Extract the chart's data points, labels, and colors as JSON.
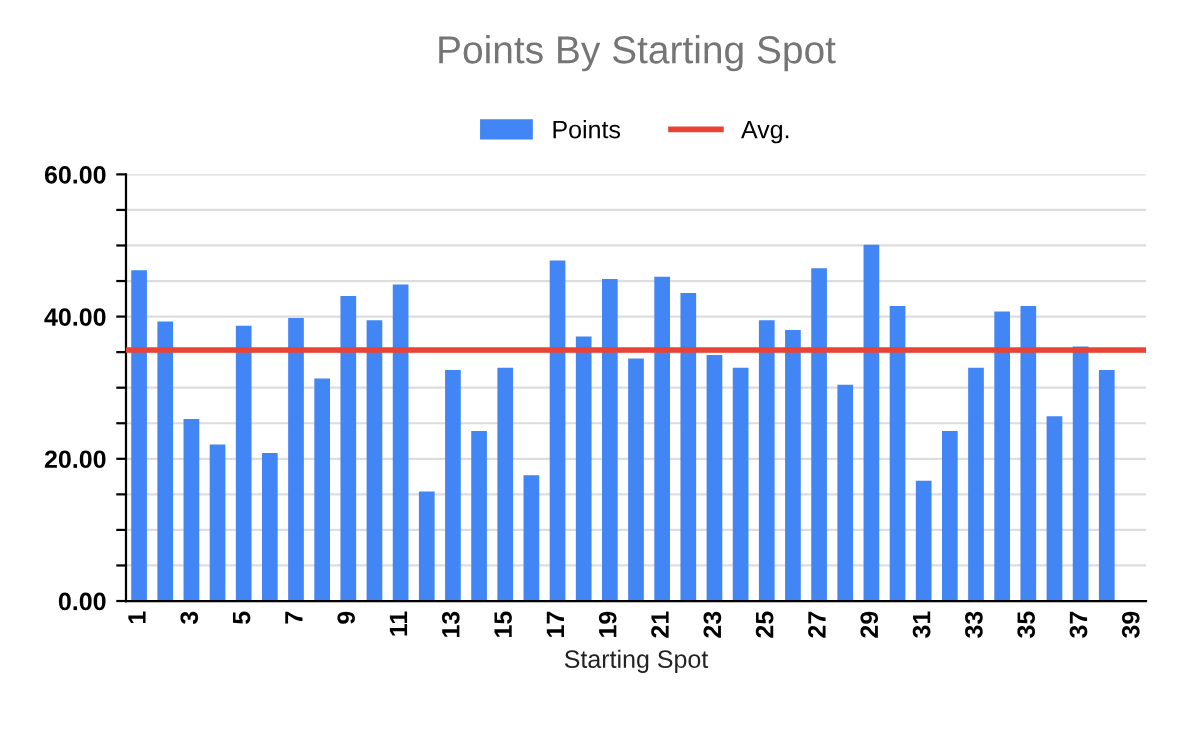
{
  "chart_data": {
    "type": "bar",
    "title": "Points By Starting Spot",
    "xlabel": "Starting Spot",
    "categories": [
      "1",
      null,
      "3",
      null,
      "5",
      null,
      "7",
      null,
      "9",
      null,
      "11",
      null,
      "13",
      null,
      "15",
      null,
      "17",
      null,
      "19",
      null,
      "21",
      null,
      "23",
      null,
      "25",
      null,
      "27",
      null,
      "29",
      null,
      "31",
      null,
      "33",
      null,
      "35",
      null,
      "37",
      null,
      "39"
    ],
    "series": [
      {
        "name": "Points",
        "color": "#4285f4",
        "values": [
          46.5,
          39.3,
          25.6,
          22,
          38.7,
          20.8,
          39.8,
          31.3,
          42.9,
          39.5,
          44.5,
          15.4,
          32.5,
          23.9,
          32.8,
          17.7,
          47.9,
          37.2,
          45.3,
          34.1,
          45.6,
          43.3,
          34.6,
          32.8,
          39.5,
          38.1,
          46.8,
          30.4,
          50.1,
          41.5,
          16.9,
          23.9,
          32.8,
          40.7,
          41.5,
          26,
          35.8,
          32.5,
          null
        ]
      }
    ],
    "ref_lines": [
      {
        "axis": "y",
        "value": 35.3,
        "label": "Avg.",
        "color": "#ea4335",
        "line_style": "solid"
      }
    ],
    "ylim": [
      0,
      60
    ],
    "yticks": [
      {
        "value": 0,
        "label": "0.00"
      },
      {
        "value": 5,
        "label": null
      },
      {
        "value": 10,
        "label": null
      },
      {
        "value": 15,
        "label": null
      },
      {
        "value": 20,
        "label": "20.00"
      },
      {
        "value": 25,
        "label": null
      },
      {
        "value": 30,
        "label": null
      },
      {
        "value": 35,
        "label": null
      },
      {
        "value": 40,
        "label": "40.00"
      },
      {
        "value": 45,
        "label": null
      },
      {
        "value": 50,
        "label": null
      },
      {
        "value": 55,
        "label": null
      },
      {
        "value": 60,
        "label": "60.00"
      }
    ],
    "grid": "y",
    "legend": "top"
  }
}
